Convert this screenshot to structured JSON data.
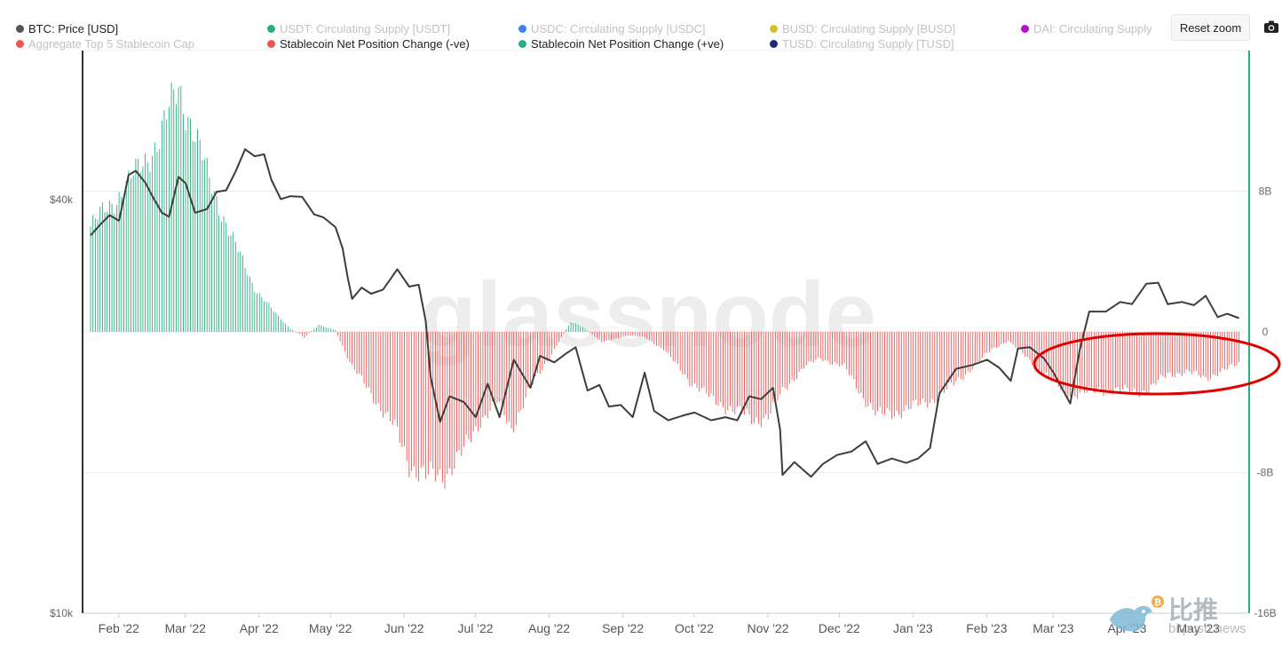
{
  "legend": {
    "row1": [
      {
        "label": "BTC: Price [USD]",
        "color": "#555555",
        "active": true
      },
      {
        "label": "USDT: Circulating Supply [USDT]",
        "color": "#26b07c",
        "active": false
      },
      {
        "label": "USDC: Circulating Supply [USDC]",
        "color": "#3b82f6",
        "active": false
      },
      {
        "label": "BUSD: Circulating Supply [BUSD]",
        "color": "#d4c02a",
        "active": false
      },
      {
        "label": "DAI: Circulating Supply",
        "color": "#b216c6",
        "active": false
      }
    ],
    "row2": [
      {
        "label": "Aggregate Top 5 Stablecoin Cap",
        "color": "#f05454",
        "active": false
      },
      {
        "label": "Stablecoin Net Position Change (-ve)",
        "color": "#f05454",
        "active": true
      },
      {
        "label": "Stablecoin Net Position Change (+ve)",
        "color": "#26b07c",
        "active": true
      },
      {
        "label": "TUSD: Circulating Supply [TUSD]",
        "color": "#1f2a7a",
        "active": false
      }
    ]
  },
  "toolbar": {
    "reset_zoom": "Reset zoom"
  },
  "watermark": {
    "text": "glassnode",
    "source_cn": "比推",
    "source_en": "bitpush.news"
  },
  "chart_data": {
    "type": "line+bar",
    "left_axis": {
      "scale": "log",
      "ticks": [
        "$40k",
        "$10k"
      ],
      "tick_values": [
        40000,
        10000
      ],
      "range": [
        10000,
        66000
      ]
    },
    "right_axis": {
      "ticks": [
        "8B",
        "0",
        "-8B",
        "-16B"
      ],
      "tick_values": [
        8,
        0,
        -8,
        -16
      ],
      "range": [
        -16,
        16
      ],
      "unit": "B"
    },
    "x_ticks": [
      "Feb '22",
      "Mar '22",
      "Apr '22",
      "May '22",
      "Jun '22",
      "Jul '22",
      "Aug '22",
      "Sep '22",
      "Oct '22",
      "Nov '22",
      "Dec '22",
      "Jan '23",
      "Feb '23",
      "Mar '23",
      "Apr '23",
      "May '23"
    ],
    "x_range": [
      "2022-01-22",
      "2023-05-22"
    ],
    "colors": {
      "price": "#3d3d3d",
      "positive": "#26b07c",
      "negative": "#f05454",
      "grid": "#ececec",
      "annotation": "#e00000",
      "right_axis_line": "#26b07c"
    },
    "price_series": {
      "name": "BTC: Price [USD]",
      "points": [
        [
          "2022-01-22",
          35500
        ],
        [
          "2022-01-26",
          36800
        ],
        [
          "2022-01-30",
          38000
        ],
        [
          "2022-02-03",
          37300
        ],
        [
          "2022-02-07",
          43500
        ],
        [
          "2022-02-10",
          44100
        ],
        [
          "2022-02-14",
          42400
        ],
        [
          "2022-02-17",
          40500
        ],
        [
          "2022-02-21",
          38300
        ],
        [
          "2022-02-24",
          37800
        ],
        [
          "2022-02-28",
          43200
        ],
        [
          "2022-03-03",
          42300
        ],
        [
          "2022-03-07",
          38300
        ],
        [
          "2022-03-12",
          38800
        ],
        [
          "2022-03-16",
          41100
        ],
        [
          "2022-03-20",
          41300
        ],
        [
          "2022-03-24",
          44000
        ],
        [
          "2022-03-28",
          47400
        ],
        [
          "2022-04-01",
          46300
        ],
        [
          "2022-04-05",
          46600
        ],
        [
          "2022-04-08",
          42800
        ],
        [
          "2022-04-12",
          40100
        ],
        [
          "2022-04-16",
          40500
        ],
        [
          "2022-04-21",
          40400
        ],
        [
          "2022-04-26",
          38100
        ],
        [
          "2022-04-30",
          37700
        ],
        [
          "2022-05-05",
          36500
        ],
        [
          "2022-05-08",
          34000
        ],
        [
          "2022-05-10",
          31000
        ],
        [
          "2022-05-12",
          28700
        ],
        [
          "2022-05-16",
          29800
        ],
        [
          "2022-05-20",
          29200
        ],
        [
          "2022-05-25",
          29600
        ],
        [
          "2022-05-31",
          31700
        ],
        [
          "2022-06-05",
          29900
        ],
        [
          "2022-06-09",
          30100
        ],
        [
          "2022-06-12",
          26600
        ],
        [
          "2022-06-14",
          22100
        ],
        [
          "2022-06-18",
          19000
        ],
        [
          "2022-06-22",
          20700
        ],
        [
          "2022-06-28",
          20300
        ],
        [
          "2022-07-03",
          19300
        ],
        [
          "2022-07-08",
          21600
        ],
        [
          "2022-07-13",
          19300
        ],
        [
          "2022-07-19",
          23400
        ],
        [
          "2022-07-26",
          21300
        ],
        [
          "2022-07-30",
          23700
        ],
        [
          "2022-08-05",
          23200
        ],
        [
          "2022-08-10",
          23900
        ],
        [
          "2022-08-14",
          24400
        ],
        [
          "2022-08-19",
          21100
        ],
        [
          "2022-08-24",
          21500
        ],
        [
          "2022-08-28",
          20000
        ],
        [
          "2022-09-02",
          20100
        ],
        [
          "2022-09-07",
          19300
        ],
        [
          "2022-09-12",
          22400
        ],
        [
          "2022-09-16",
          19700
        ],
        [
          "2022-09-22",
          19100
        ],
        [
          "2022-09-28",
          19400
        ],
        [
          "2022-10-03",
          19600
        ],
        [
          "2022-10-10",
          19100
        ],
        [
          "2022-10-16",
          19300
        ],
        [
          "2022-10-21",
          19100
        ],
        [
          "2022-10-26",
          20700
        ],
        [
          "2022-10-31",
          20500
        ],
        [
          "2022-11-05",
          21300
        ],
        [
          "2022-11-08",
          18500
        ],
        [
          "2022-11-09",
          15900
        ],
        [
          "2022-11-14",
          16600
        ],
        [
          "2022-11-21",
          15800
        ],
        [
          "2022-11-26",
          16500
        ],
        [
          "2022-12-02",
          17000
        ],
        [
          "2022-12-08",
          17200
        ],
        [
          "2022-12-14",
          17800
        ],
        [
          "2022-12-19",
          16500
        ],
        [
          "2022-12-25",
          16800
        ],
        [
          "2022-12-31",
          16550
        ],
        [
          "2023-01-05",
          16800
        ],
        [
          "2023-01-10",
          17400
        ],
        [
          "2023-01-14",
          20900
        ],
        [
          "2023-01-21",
          22700
        ],
        [
          "2023-01-28",
          23000
        ],
        [
          "2023-02-03",
          23400
        ],
        [
          "2023-02-08",
          22800
        ],
        [
          "2023-02-13",
          21800
        ],
        [
          "2023-02-16",
          24300
        ],
        [
          "2023-02-21",
          24400
        ],
        [
          "2023-02-27",
          23500
        ],
        [
          "2023-03-03",
          22400
        ],
        [
          "2023-03-10",
          20200
        ],
        [
          "2023-03-14",
          24200
        ],
        [
          "2023-03-18",
          27500
        ],
        [
          "2023-03-25",
          27500
        ],
        [
          "2023-03-31",
          28400
        ],
        [
          "2023-04-05",
          28200
        ],
        [
          "2023-04-11",
          30200
        ],
        [
          "2023-04-16",
          30300
        ],
        [
          "2023-04-20",
          28200
        ],
        [
          "2023-04-26",
          28400
        ],
        [
          "2023-05-01",
          28100
        ],
        [
          "2023-05-06",
          29000
        ],
        [
          "2023-05-11",
          27000
        ],
        [
          "2023-05-15",
          27300
        ],
        [
          "2023-05-20",
          26900
        ]
      ]
    },
    "net_position_series": {
      "name": "Stablecoin Net Position Change",
      "unit": "B",
      "points": [
        [
          "2022-01-22",
          6.0
        ],
        [
          "2022-02-01",
          7.5
        ],
        [
          "2022-02-10",
          9.0
        ],
        [
          "2022-02-20",
          11.0
        ],
        [
          "2022-02-28",
          14.0
        ],
        [
          "2022-03-05",
          12.0
        ],
        [
          "2022-03-12",
          9.0
        ],
        [
          "2022-03-22",
          5.5
        ],
        [
          "2022-04-01",
          2.5
        ],
        [
          "2022-04-10",
          1.0
        ],
        [
          "2022-04-16",
          0.2
        ],
        [
          "2022-04-22",
          -0.3
        ],
        [
          "2022-04-28",
          0.4
        ],
        [
          "2022-05-05",
          0.1
        ],
        [
          "2022-05-12",
          -2.0
        ],
        [
          "2022-05-20",
          -3.5
        ],
        [
          "2022-05-30",
          -5.5
        ],
        [
          "2022-06-05",
          -7.5
        ],
        [
          "2022-06-12",
          -8.3
        ],
        [
          "2022-06-20",
          -8.1
        ],
        [
          "2022-06-28",
          -6.8
        ],
        [
          "2022-07-05",
          -5.0
        ],
        [
          "2022-07-12",
          -4.0
        ],
        [
          "2022-07-18",
          -5.5
        ],
        [
          "2022-07-26",
          -3.2
        ],
        [
          "2022-08-05",
          -1.0
        ],
        [
          "2022-08-12",
          0.6
        ],
        [
          "2022-08-18",
          0.2
        ],
        [
          "2022-08-25",
          -0.6
        ],
        [
          "2022-09-05",
          -0.2
        ],
        [
          "2022-09-12",
          -0.3
        ],
        [
          "2022-09-20",
          -1.0
        ],
        [
          "2022-10-01",
          -2.8
        ],
        [
          "2022-10-10",
          -3.8
        ],
        [
          "2022-10-20",
          -4.5
        ],
        [
          "2022-10-28",
          -5.0
        ],
        [
          "2022-11-03",
          -4.8
        ],
        [
          "2022-11-10",
          -3.2
        ],
        [
          "2022-11-18",
          -2.0
        ],
        [
          "2022-11-25",
          -1.5
        ],
        [
          "2022-12-05",
          -2.0
        ],
        [
          "2022-12-12",
          -3.5
        ],
        [
          "2022-12-19",
          -4.8
        ],
        [
          "2022-12-28",
          -4.5
        ],
        [
          "2023-01-05",
          -4.2
        ],
        [
          "2023-01-12",
          -3.8
        ],
        [
          "2023-01-20",
          -3.0
        ],
        [
          "2023-01-28",
          -2.0
        ],
        [
          "2023-02-05",
          -1.0
        ],
        [
          "2023-02-12",
          -0.5
        ],
        [
          "2023-02-20",
          -1.5
        ],
        [
          "2023-02-28",
          -2.5
        ],
        [
          "2023-03-08",
          -3.5
        ],
        [
          "2023-03-15",
          -3.5
        ],
        [
          "2023-03-25",
          -3.3
        ],
        [
          "2023-04-05",
          -3.4
        ],
        [
          "2023-04-12",
          -3.3
        ],
        [
          "2023-04-20",
          -2.4
        ],
        [
          "2023-04-28",
          -2.3
        ],
        [
          "2023-05-06",
          -2.6
        ],
        [
          "2023-05-14",
          -2.2
        ],
        [
          "2023-05-20",
          -1.8
        ]
      ]
    }
  }
}
